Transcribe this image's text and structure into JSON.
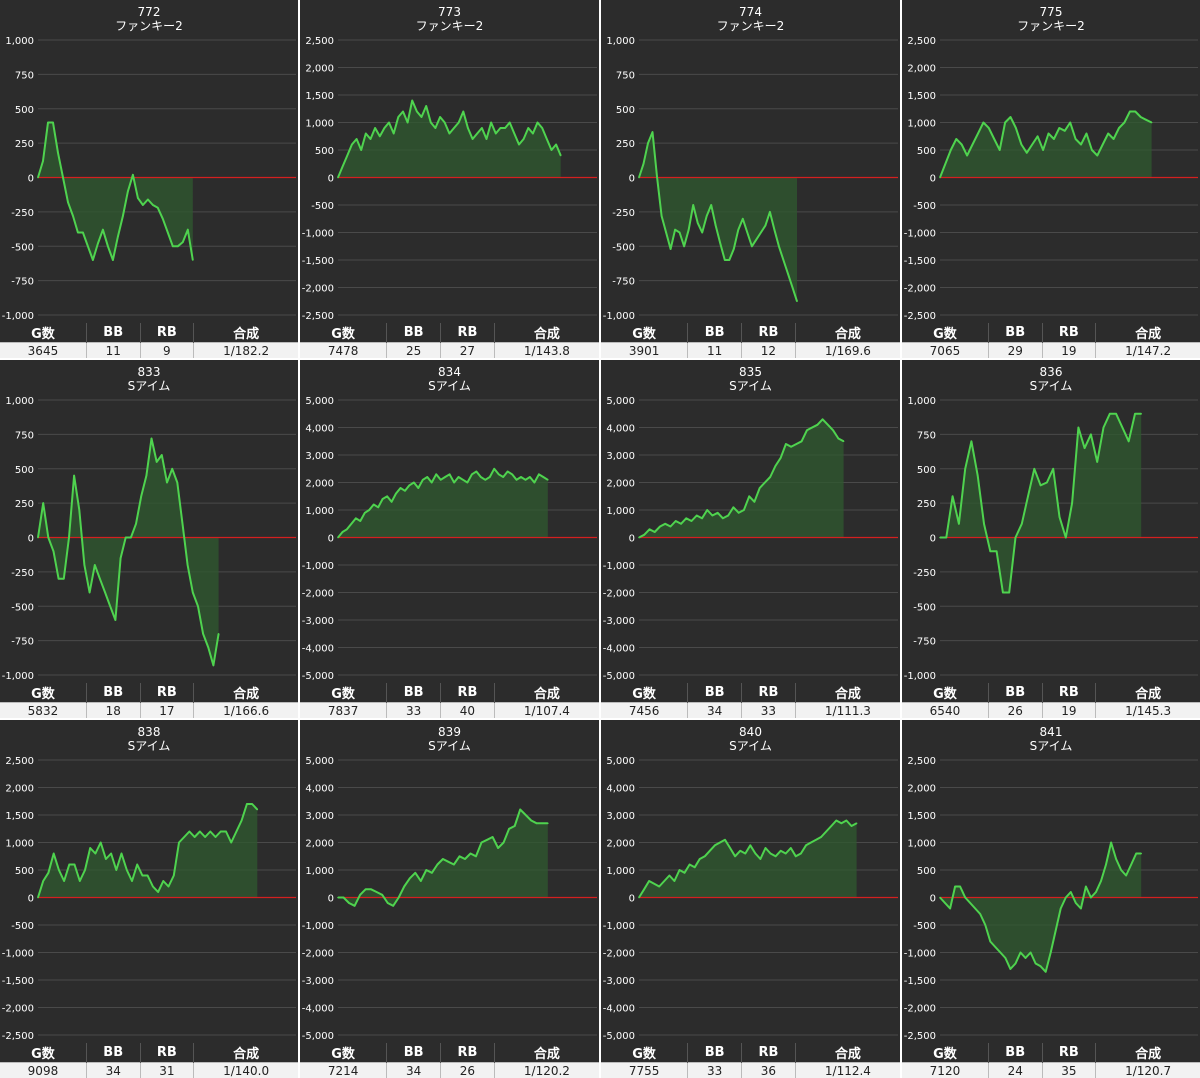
{
  "colors": {
    "panel_bg": "#2c2c2c",
    "line": "#4fd34f",
    "fill": "#2f5a2f",
    "zero": "#d42020",
    "grid": "#4a4a4a"
  },
  "stats_headers": [
    "G数",
    "BB",
    "RB",
    "合成"
  ],
  "chart_data": [
    {
      "type": "area",
      "title": "772",
      "subtitle": "ファンキー2",
      "ylim": [
        -1000,
        1000
      ],
      "yticks": [
        -1000,
        -750,
        -500,
        -250,
        0,
        250,
        500,
        750,
        1000
      ],
      "tick_labels": [
        "-1,000",
        "-750",
        "-500",
        "-250",
        "0",
        "250",
        "500",
        "750",
        "1,000"
      ],
      "x_end": 0.6,
      "values": [
        0,
        120,
        400,
        400,
        180,
        0,
        -180,
        -280,
        -400,
        -400,
        -500,
        -600,
        -480,
        -380,
        -500,
        -600,
        -430,
        -280,
        -100,
        20,
        -150,
        -200,
        -160,
        -200,
        -220,
        -300,
        -400,
        -500,
        -500,
        -470,
        -380,
        -600
      ],
      "stats": [
        "3645",
        "11",
        "9",
        "1/182.2"
      ]
    },
    {
      "type": "area",
      "title": "773",
      "subtitle": "ファンキー2",
      "ylim": [
        -2500,
        2500
      ],
      "yticks": [
        -2500,
        -2000,
        -1500,
        -1000,
        -500,
        0,
        500,
        1000,
        1500,
        2000,
        2500
      ],
      "tick_labels": [
        "-2,500",
        "-2,000",
        "-1,500",
        "-1,000",
        "-500",
        "0",
        "500",
        "1,000",
        "1,500",
        "2,000",
        "2,500"
      ],
      "x_end": 0.86,
      "values": [
        0,
        200,
        400,
        600,
        700,
        500,
        800,
        700,
        900,
        750,
        900,
        1000,
        800,
        1100,
        1200,
        1000,
        1400,
        1200,
        1100,
        1300,
        1000,
        900,
        1100,
        1000,
        800,
        900,
        1000,
        1200,
        900,
        700,
        800,
        900,
        700,
        1000,
        800,
        900,
        900,
        1000,
        800,
        600,
        700,
        900,
        800,
        1000,
        900,
        700,
        500,
        600,
        400
      ],
      "stats": [
        "7478",
        "25",
        "27",
        "1/143.8"
      ]
    },
    {
      "type": "area",
      "title": "774",
      "subtitle": "ファンキー2",
      "ylim": [
        -1000,
        1000
      ],
      "yticks": [
        -1000,
        -750,
        -500,
        -250,
        0,
        250,
        500,
        750,
        1000
      ],
      "tick_labels": [
        "-1,000",
        "-750",
        "-500",
        "-250",
        "0",
        "250",
        "500",
        "750",
        "1,000"
      ],
      "x_end": 0.61,
      "values": [
        0,
        100,
        250,
        330,
        0,
        -280,
        -400,
        -520,
        -380,
        -400,
        -500,
        -380,
        -200,
        -330,
        -400,
        -280,
        -200,
        -350,
        -480,
        -600,
        -600,
        -520,
        -380,
        -300,
        -400,
        -500,
        -450,
        -400,
        -350,
        -250,
        -380,
        -500,
        -600,
        -700,
        -800,
        -900
      ],
      "stats": [
        "3901",
        "11",
        "12",
        "1/169.6"
      ]
    },
    {
      "type": "area",
      "title": "775",
      "subtitle": "ファンキー2",
      "ylim": [
        -2500,
        2500
      ],
      "yticks": [
        -2500,
        -2000,
        -1500,
        -1000,
        -500,
        0,
        500,
        1000,
        1500,
        2000,
        2500
      ],
      "tick_labels": [
        "-2,500",
        "-2,000",
        "-1,500",
        "-1,000",
        "-500",
        "0",
        "500",
        "1,000",
        "1,500",
        "2,000",
        "2,500"
      ],
      "x_end": 0.82,
      "values": [
        0,
        250,
        500,
        700,
        600,
        400,
        600,
        800,
        1000,
        900,
        700,
        500,
        1000,
        1100,
        900,
        600,
        450,
        600,
        750,
        500,
        800,
        700,
        900,
        850,
        1000,
        700,
        600,
        800,
        500,
        400,
        600,
        800,
        700,
        900,
        1000,
        1200,
        1200,
        1100,
        1050,
        1000
      ],
      "stats": [
        "7065",
        "29",
        "19",
        "1/147.2"
      ]
    },
    {
      "type": "area",
      "title": "833",
      "subtitle": "Sアイム",
      "ylim": [
        -1000,
        1000
      ],
      "yticks": [
        -1000,
        -750,
        -500,
        -250,
        0,
        250,
        500,
        750,
        1000
      ],
      "tick_labels": [
        "-1,000",
        "-750",
        "-500",
        "-250",
        "0",
        "250",
        "500",
        "750",
        "1,000"
      ],
      "x_end": 0.7,
      "values": [
        0,
        250,
        0,
        -100,
        -300,
        -300,
        0,
        450,
        200,
        -200,
        -400,
        -200,
        -300,
        -400,
        -500,
        -600,
        -150,
        0,
        0,
        100,
        300,
        450,
        720,
        550,
        600,
        400,
        500,
        400,
        100,
        -200,
        -400,
        -500,
        -700,
        -800,
        -930,
        -700
      ],
      "stats": [
        "5832",
        "18",
        "17",
        "1/166.6"
      ]
    },
    {
      "type": "area",
      "title": "834",
      "subtitle": "Sアイム",
      "ylim": [
        -5000,
        5000
      ],
      "yticks": [
        -5000,
        -4000,
        -3000,
        -2000,
        -1000,
        0,
        1000,
        2000,
        3000,
        4000,
        5000
      ],
      "tick_labels": [
        "-5,000",
        "-4,000",
        "-3,000",
        "-2,000",
        "-1,000",
        "0",
        "1,000",
        "2,000",
        "3,000",
        "4,000",
        "5,000"
      ],
      "x_end": 0.81,
      "values": [
        0,
        200,
        300,
        500,
        700,
        600,
        900,
        1000,
        1200,
        1100,
        1400,
        1500,
        1300,
        1600,
        1800,
        1700,
        1900,
        2000,
        1800,
        2100,
        2200,
        2000,
        2300,
        2100,
        2200,
        2300,
        2000,
        2200,
        2100,
        2000,
        2300,
        2400,
        2200,
        2100,
        2200,
        2500,
        2300,
        2200,
        2400,
        2300,
        2100,
        2200,
        2100,
        2200,
        2000,
        2300,
        2200,
        2100
      ],
      "stats": [
        "7837",
        "33",
        "40",
        "1/107.4"
      ]
    },
    {
      "type": "area",
      "title": "835",
      "subtitle": "Sアイム",
      "ylim": [
        -5000,
        5000
      ],
      "yticks": [
        -5000,
        -4000,
        -3000,
        -2000,
        -1000,
        0,
        1000,
        2000,
        3000,
        4000,
        5000
      ],
      "tick_labels": [
        "-5,000",
        "-4,000",
        "-3,000",
        "-2,000",
        "-1,000",
        "0",
        "1,000",
        "2,000",
        "3,000",
        "4,000",
        "5,000"
      ],
      "x_end": 0.79,
      "values": [
        0,
        100,
        300,
        200,
        400,
        500,
        400,
        600,
        500,
        700,
        600,
        800,
        700,
        1000,
        800,
        900,
        700,
        800,
        1100,
        900,
        1000,
        1500,
        1300,
        1800,
        2000,
        2200,
        2600,
        2900,
        3400,
        3300,
        3400,
        3500,
        3900,
        4000,
        4100,
        4300,
        4100,
        3900,
        3600,
        3500
      ],
      "stats": [
        "7456",
        "34",
        "33",
        "1/111.3"
      ]
    },
    {
      "type": "area",
      "title": "836",
      "subtitle": "Sアイム",
      "ylim": [
        -1000,
        1000
      ],
      "yticks": [
        -1000,
        -750,
        -500,
        -250,
        0,
        250,
        500,
        750,
        1000
      ],
      "tick_labels": [
        "-1,000",
        "-750",
        "-500",
        "-250",
        "0",
        "250",
        "500",
        "750",
        "1,000"
      ],
      "x_end": 0.78,
      "values": [
        0,
        0,
        300,
        100,
        500,
        700,
        450,
        100,
        -100,
        -100,
        -400,
        -400,
        0,
        100,
        300,
        500,
        380,
        400,
        500,
        150,
        0,
        250,
        800,
        650,
        750,
        550,
        800,
        900,
        900,
        800,
        700,
        900,
        900
      ],
      "stats": [
        "6540",
        "26",
        "19",
        "1/145.3"
      ]
    },
    {
      "type": "area",
      "title": "838",
      "subtitle": "Sアイム",
      "ylim": [
        -2500,
        2500
      ],
      "yticks": [
        -2500,
        -2000,
        -1500,
        -1000,
        -500,
        0,
        500,
        1000,
        1500,
        2000,
        2500
      ],
      "tick_labels": [
        "-2,500",
        "-2,000",
        "-1,500",
        "-1,000",
        "-500",
        "0",
        "500",
        "1,000",
        "1,500",
        "2,000",
        "2,500"
      ],
      "x_end": 0.85,
      "values": [
        0,
        300,
        450,
        800,
        500,
        300,
        600,
        600,
        300,
        500,
        900,
        800,
        1000,
        700,
        800,
        500,
        800,
        500,
        300,
        600,
        400,
        400,
        200,
        100,
        300,
        200,
        400,
        1000,
        1100,
        1200,
        1100,
        1200,
        1100,
        1200,
        1100,
        1200,
        1200,
        1000,
        1200,
        1400,
        1700,
        1700,
        1600
      ],
      "stats": [
        "9098",
        "34",
        "31",
        "1/140.0"
      ]
    },
    {
      "type": "area",
      "title": "839",
      "subtitle": "Sアイム",
      "ylim": [
        -5000,
        5000
      ],
      "yticks": [
        -5000,
        -4000,
        -3000,
        -2000,
        -1000,
        0,
        1000,
        2000,
        3000,
        4000,
        5000
      ],
      "tick_labels": [
        "-5,000",
        "-4,000",
        "-3,000",
        "-2,000",
        "-1,000",
        "0",
        "1,000",
        "2,000",
        "3,000",
        "4,000",
        "5,000"
      ],
      "x_end": 0.81,
      "values": [
        0,
        0,
        -200,
        -300,
        100,
        300,
        300,
        200,
        100,
        -200,
        -300,
        0,
        400,
        700,
        900,
        600,
        1000,
        900,
        1200,
        1400,
        1300,
        1200,
        1500,
        1400,
        1600,
        1500,
        2000,
        2100,
        2200,
        1800,
        2000,
        2500,
        2600,
        3200,
        3000,
        2800,
        2700,
        2700,
        2700
      ],
      "stats": [
        "7214",
        "34",
        "26",
        "1/120.2"
      ]
    },
    {
      "type": "area",
      "title": "840",
      "subtitle": "Sアイム",
      "ylim": [
        -5000,
        5000
      ],
      "yticks": [
        -5000,
        -4000,
        -3000,
        -2000,
        -1000,
        0,
        1000,
        2000,
        3000,
        4000,
        5000
      ],
      "tick_labels": [
        "-5,000",
        "-4,000",
        "-3,000",
        "-2,000",
        "-1,000",
        "0",
        "1,000",
        "2,000",
        "3,000",
        "4,000",
        "5,000"
      ],
      "x_end": 0.84,
      "values": [
        0,
        300,
        600,
        500,
        400,
        600,
        800,
        600,
        1000,
        900,
        1200,
        1100,
        1400,
        1500,
        1700,
        1900,
        2000,
        2100,
        1800,
        1500,
        1700,
        1600,
        1900,
        1600,
        1400,
        1800,
        1600,
        1500,
        1700,
        1600,
        1800,
        1500,
        1600,
        1900,
        2000,
        2100,
        2200,
        2400,
        2600,
        2800,
        2700,
        2800,
        2600,
        2700
      ],
      "stats": [
        "7755",
        "33",
        "36",
        "1/112.4"
      ]
    },
    {
      "type": "area",
      "title": "841",
      "subtitle": "Sアイム",
      "ylim": [
        -2500,
        2500
      ],
      "yticks": [
        -2500,
        -2000,
        -1500,
        -1000,
        -500,
        0,
        500,
        1000,
        1500,
        2000,
        2500
      ],
      "tick_labels": [
        "-2,500",
        "-2,000",
        "-1,500",
        "-1,000",
        "-500",
        "0",
        "500",
        "1,000",
        "1,500",
        "2,000",
        "2,500"
      ],
      "x_end": 0.78,
      "values": [
        0,
        -100,
        -200,
        200,
        200,
        0,
        -100,
        -200,
        -300,
        -500,
        -800,
        -900,
        -1000,
        -1100,
        -1300,
        -1200,
        -1000,
        -1100,
        -1000,
        -1200,
        -1250,
        -1350,
        -1000,
        -600,
        -200,
        0,
        100,
        -100,
        -200,
        200,
        0,
        100,
        300,
        600,
        1000,
        700,
        500,
        400,
        600,
        800,
        800
      ],
      "stats": [
        "7120",
        "24",
        "35",
        "1/120.7"
      ]
    }
  ]
}
